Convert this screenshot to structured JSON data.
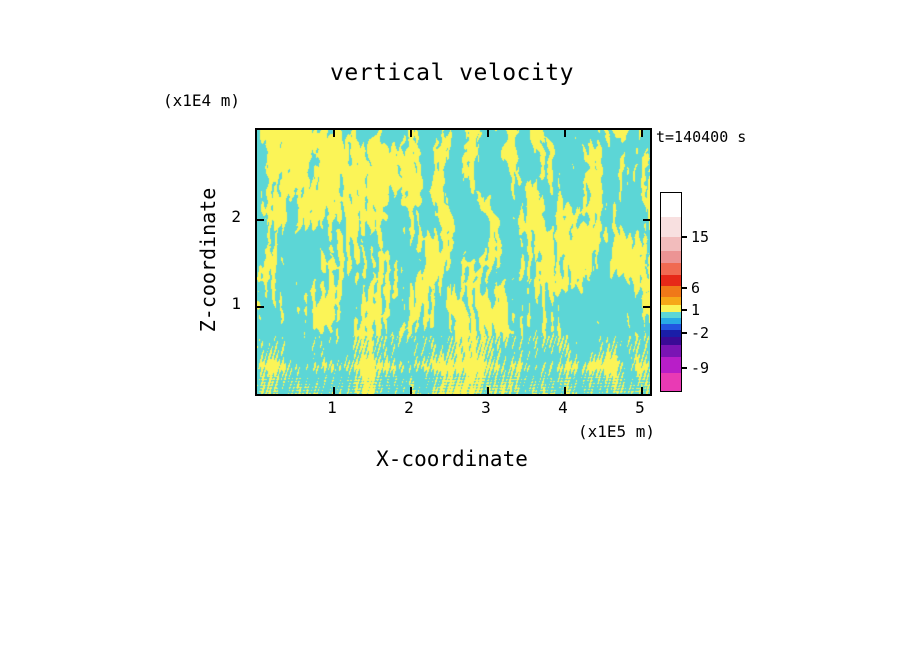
{
  "title": "vertical velocity",
  "time_label": "t=140400 s",
  "axes": {
    "x": {
      "title": "X-coordinate",
      "unit": "(x1E5 m)",
      "ticks": [
        1,
        2,
        3,
        4,
        5
      ]
    },
    "y": {
      "title": "Z-coordinate",
      "unit": "(x1E4 m)",
      "ticks": [
        1,
        2
      ]
    }
  },
  "field_colors": {
    "positive": "#FBF457",
    "negative": "#5CD6D6"
  },
  "colorbar": {
    "segments": [
      {
        "color": "#FFFFFF",
        "h": 0.121
      },
      {
        "color": "#F8E0E0",
        "h": 0.101
      },
      {
        "color": "#F2BCBC",
        "h": 0.071
      },
      {
        "color": "#EC9494",
        "h": 0.061
      },
      {
        "color": "#F06A52",
        "h": 0.061
      },
      {
        "color": "#E62818",
        "h": 0.056
      },
      {
        "color": "#F07818",
        "h": 0.056
      },
      {
        "color": "#F6A818",
        "h": 0.04
      },
      {
        "color": "#FBF457",
        "h": 0.035
      },
      {
        "color": "#5CD6D6",
        "h": 0.03
      },
      {
        "color": "#28AAE6",
        "h": 0.03
      },
      {
        "color": "#2255E0",
        "h": 0.03
      },
      {
        "color": "#1A1EA8",
        "h": 0.035
      },
      {
        "color": "#3A0A96",
        "h": 0.04
      },
      {
        "color": "#7A14B4",
        "h": 0.061
      },
      {
        "color": "#B81EC8",
        "h": 0.081
      },
      {
        "color": "#E93AB4",
        "h": 0.091
      }
    ],
    "ticks": [
      {
        "label": "15",
        "pos": 0.227
      },
      {
        "label": "6",
        "pos": 0.485
      },
      {
        "label": "1",
        "pos": 0.596
      },
      {
        "label": "-2",
        "pos": 0.712
      },
      {
        "label": "-9",
        "pos": 0.889
      }
    ]
  },
  "chart_data": {
    "type": "heatmap",
    "title": "vertical velocity",
    "xlabel": "X-coordinate",
    "x_unit": "(x1E5 m)",
    "ylabel": "Z-coordinate",
    "y_unit": "(x1E4 m)",
    "time": "t=140400 s",
    "xlim": [
      0,
      5.1
    ],
    "ylim": [
      0,
      3.0
    ],
    "x_tick_values": [
      1,
      2,
      3,
      4,
      5
    ],
    "y_tick_values": [
      1,
      2
    ],
    "colorbar_tick_values": [
      15,
      6,
      1,
      -2,
      -9
    ],
    "field_description": "Turbulent convection field rendered almost entirely in two colors: yellow filaments (positive vertical velocity, roughly 1 to 6 units) embedded in a cyan background (slightly negative velocity, roughly -2 to 1 units). Filaments are vertically elongated branching plumes spanning the domain depth, with fine-scale vertical striping and thin horizontal layering concentrated near the bottom boundary, including a near-continuous yellow band close to z=0."
  }
}
